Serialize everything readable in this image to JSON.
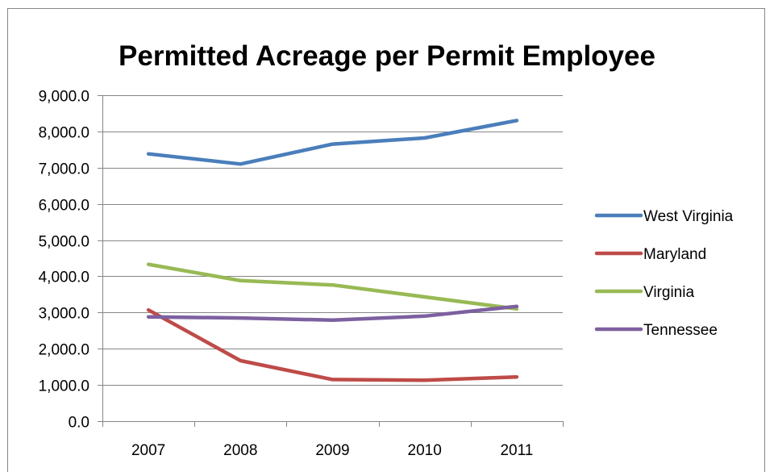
{
  "chart_data": {
    "type": "line",
    "title": "Permitted Acreage per Permit Employee",
    "xlabel": "",
    "ylabel": "",
    "categories": [
      "2007",
      "2008",
      "2009",
      "2010",
      "2011"
    ],
    "ylim": [
      0,
      9000
    ],
    "y_ticks": [
      "0.0",
      "1,000.0",
      "2,000.0",
      "3,000.0",
      "4,000.0",
      "5,000.0",
      "6,000.0",
      "7,000.0",
      "8,000.0",
      "9,000.0"
    ],
    "grid": true,
    "legend_position": "right",
    "series": [
      {
        "name": "West Virginia",
        "color": "#4a7ebb",
        "values": [
          7380,
          7100,
          7650,
          7820,
          8300
        ]
      },
      {
        "name": "Maryland",
        "color": "#be4b48",
        "values": [
          3070,
          1670,
          1150,
          1130,
          1220
        ]
      },
      {
        "name": "Virginia",
        "color": "#98b954",
        "values": [
          4330,
          3880,
          3760,
          3430,
          3100
        ]
      },
      {
        "name": "Tennessee",
        "color": "#7d60a0",
        "values": [
          2880,
          2850,
          2790,
          2900,
          3170
        ]
      }
    ]
  }
}
